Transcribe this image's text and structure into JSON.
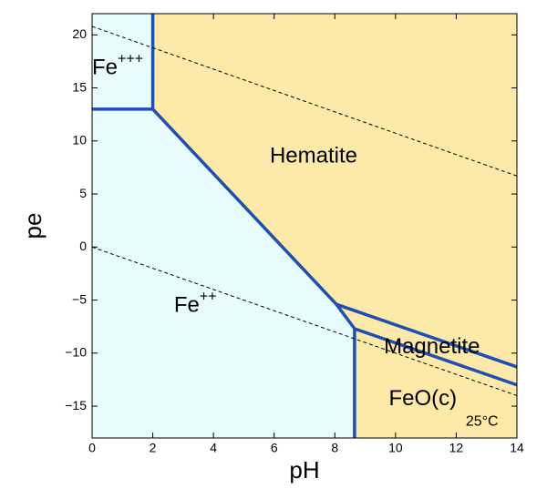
{
  "chart_data": {
    "type": "line",
    "x_label": "pH",
    "y_label": "pe",
    "xlim": [
      0,
      14
    ],
    "ylim": [
      -18,
      22
    ],
    "xticks": [
      0,
      2,
      4,
      6,
      8,
      10,
      12,
      14
    ],
    "yticks": [
      {
        "value": -15,
        "label": "−15"
      },
      {
        "value": -10,
        "label": "−10"
      },
      {
        "value": -5,
        "label": "−5"
      },
      0,
      5,
      10,
      15,
      20
    ],
    "fill_colors": [
      "#e8fcfe",
      "#fde9a8"
    ],
    "series": [
      {
        "color": "#1f4fb4",
        "x": [
          0,
          2
        ],
        "y": [
          13,
          13
        ]
      },
      {
        "color": "#1f4fb4",
        "x": [
          2,
          2
        ],
        "y": [
          22,
          13
        ]
      },
      {
        "color": "#1f4fb4",
        "x": [
          2,
          8.05
        ],
        "y": [
          13,
          -5.4
        ]
      },
      {
        "color": "#1f4fb4",
        "x": [
          8.05,
          8.65
        ],
        "y": [
          -5.4,
          -7.7
        ]
      },
      {
        "color": "#1f4fb4",
        "x": [
          8.65,
          8.65
        ],
        "y": [
          -7.7,
          -18
        ]
      },
      {
        "color": "#1f4fb4",
        "x": [
          8.05,
          14
        ],
        "y": [
          -5.4,
          -11.3
        ]
      },
      {
        "color": "#1f4fb4",
        "x": [
          8.65,
          14
        ],
        "y": [
          -7.7,
          -13
        ]
      },
      {
        "color": "#000000",
        "dashed": true,
        "x": [
          0,
          14
        ],
        "y": [
          20.8,
          6.7
        ]
      },
      {
        "color": "#000000",
        "dashed": true,
        "x": [
          0,
          14
        ],
        "y": [
          0,
          -14
        ]
      }
    ],
    "annotations": [
      {
        "text": "Fe",
        "sup": "+++"
      },
      {
        "text": "Hematite"
      },
      {
        "text": "Fe",
        "sup": "++"
      },
      {
        "text": "Magnetite"
      },
      {
        "text": "FeO(c)"
      },
      {
        "text": "25°C"
      }
    ]
  }
}
